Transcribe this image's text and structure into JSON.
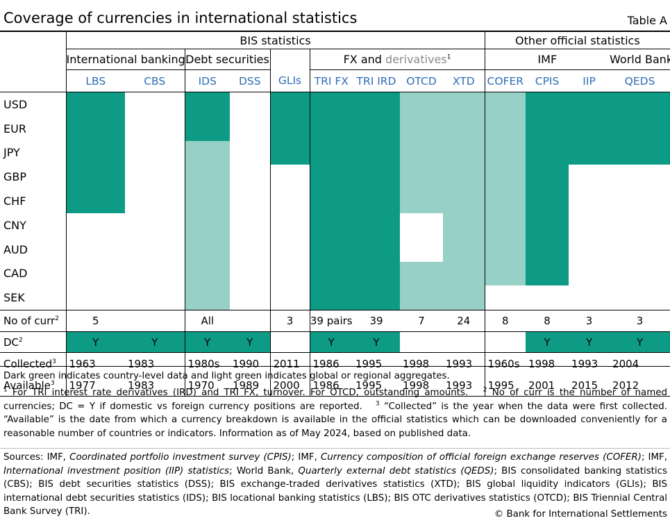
{
  "title": "Coverage of currencies in international statistics",
  "table_label": "Table A",
  "groups": {
    "bis": "BIS statistics",
    "other": "Other official statistics"
  },
  "subgroups": {
    "international_banking": "International banking",
    "debt_securities": "Debt securities",
    "fx_and": "FX and",
    "derivatives": "derivatives",
    "derivatives_note": "1",
    "imf": "IMF",
    "world_bank": "World Bank"
  },
  "columns": [
    "LBS",
    "CBS",
    "IDS",
    "DSS",
    "GLIs",
    "TRI FX",
    "TRI IRD",
    "OTCD",
    "XTD",
    "COFER",
    "CPIS",
    "IIP",
    "QEDS"
  ],
  "legend_colors": {
    "dark": "#0e9b86",
    "light": "#97d0c6",
    "code_text": "#2e6db4"
  },
  "currencies": [
    {
      "name": "USD",
      "cells": [
        "D",
        "",
        "D",
        "",
        "D",
        "D",
        "D",
        "L",
        "L",
        "L",
        "D",
        "D",
        "D"
      ]
    },
    {
      "name": "EUR",
      "cells": [
        "D",
        "",
        "D",
        "",
        "D",
        "D",
        "D",
        "L",
        "L",
        "L",
        "D",
        "D",
        "D"
      ]
    },
    {
      "name": "JPY",
      "cells": [
        "D",
        "",
        "L",
        "",
        "D",
        "D",
        "D",
        "L",
        "L",
        "L",
        "D",
        "D",
        "D"
      ]
    },
    {
      "name": "GBP",
      "cells": [
        "D",
        "",
        "L",
        "",
        "",
        "D",
        "D",
        "L",
        "L",
        "L",
        "D",
        "",
        ""
      ]
    },
    {
      "name": "CHF",
      "cells": [
        "D",
        "",
        "L",
        "",
        "",
        "D",
        "D",
        "L",
        "L",
        "L",
        "D",
        "",
        ""
      ]
    },
    {
      "name": "CNY",
      "cells": [
        "",
        "",
        "L",
        "",
        "",
        "D",
        "D",
        "",
        "L",
        "L",
        "D",
        "",
        ""
      ]
    },
    {
      "name": "AUD",
      "cells": [
        "",
        "",
        "L",
        "",
        "",
        "D",
        "D",
        "",
        "L",
        "L",
        "D",
        "",
        ""
      ]
    },
    {
      "name": "CAD",
      "cells": [
        "",
        "",
        "L",
        "",
        "",
        "D",
        "D",
        "L",
        "L",
        "L",
        "D",
        "",
        ""
      ]
    },
    {
      "name": "SEK",
      "cells": [
        "",
        "",
        "L",
        "",
        "",
        "D",
        "D",
        "L",
        "L",
        "",
        "",
        "",
        ""
      ]
    }
  ],
  "rows": {
    "no_of_curr": {
      "label": "No of curr",
      "note": "2",
      "values": [
        "5",
        "",
        "All",
        "",
        "3",
        "39 pairs",
        "39",
        "7",
        "24",
        "8",
        "8",
        "3",
        "3"
      ]
    },
    "dc": {
      "label": "DC",
      "note": "2",
      "values": [
        "Y",
        "Y",
        "Y",
        "Y",
        "",
        "Y",
        "Y",
        "",
        "",
        "",
        "Y",
        "Y",
        "Y"
      ]
    },
    "collected": {
      "label": "Collected",
      "note": "3",
      "values": [
        "1963",
        "1983",
        "1980s",
        "1990",
        "2011",
        "1986",
        "1995",
        "1998",
        "1993",
        "1960s",
        "1998",
        "1993",
        "2004"
      ]
    },
    "available": {
      "label": "Available",
      "note": "3",
      "values": [
        "1977",
        "1983",
        "1970",
        "1989",
        "2000",
        "1986",
        "1995",
        "1998",
        "1993",
        "1995",
        "2001",
        "2015",
        "2012"
      ]
    }
  },
  "dc_shading": [
    "D",
    "D",
    "D",
    "D",
    "",
    "D",
    "D",
    "",
    "",
    "",
    "D",
    "D",
    "D"
  ],
  "notes": {
    "legend": "Dark green indicates country-level data and light green indicates global or regional aggregates.",
    "n1_mark": "1",
    "n1": "For TRI interest rate derivatives (IRD) and TRI FX, turnover. For OTCD, outstanding amounts.",
    "n2_mark": "2",
    "n2": "No of curr is the number of named currencies; DC = Y if domestic vs foreign currency positions are reported.",
    "n3_mark": "3",
    "n3": "“Collected” is the year when the data were first collected. “Available” is the date from which a currency breakdown is available in the official statistics which can be downloaded conveniently for a reasonable number of countries or indicators. Information as of May 2024, based on published data."
  },
  "sources": {
    "s1": "Sources: IMF, ",
    "s2": "Coordinated portfolio investment survey (CPIS)",
    "s3": "; IMF, ",
    "s4": "Currency composition of official foreign exchange reserves (COFER)",
    "s5": "; IMF, ",
    "s6": "International investment position (IIP) statistics",
    "s7": "; World Bank, ",
    "s8": "Quarterly external debt statistics (QEDS)",
    "s9": "; BIS consolidated banking statistics (CBS); BIS debt securities statistics (DSS); BIS exchange-traded derivatives statistics (XTD); BIS global liquidity indicators (GLIs); BIS international debt securities statistics (IDS); BIS locational banking statistics (LBS); BIS OTC derivatives statistics (OTCD); BIS Triennial Central Bank Survey (TRI)."
  },
  "copyright": "© Bank for International Settlements"
}
